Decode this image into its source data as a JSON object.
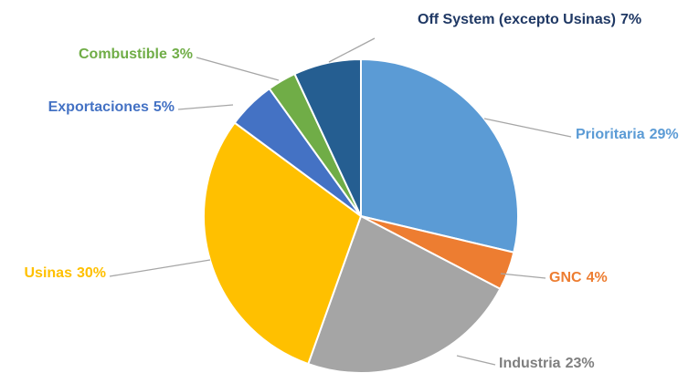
{
  "chart_data": {
    "type": "pie",
    "categories": [
      "Prioritaria",
      "GNC",
      "Industria",
      "Usinas",
      "Exportaciones",
      "Combustible",
      "Off System (excepto Usinas)"
    ],
    "values": [
      29,
      4,
      23,
      30,
      5,
      3,
      7
    ],
    "value_labels": [
      "29%",
      "4%",
      "23%",
      "30%",
      "5%",
      "3%",
      "7%"
    ],
    "colors": [
      "#5b9bd5",
      "#ed7d31",
      "#a5a5a5",
      "#ffc000",
      "#4472c4",
      "#70ad47",
      "#255e91"
    ]
  }
}
